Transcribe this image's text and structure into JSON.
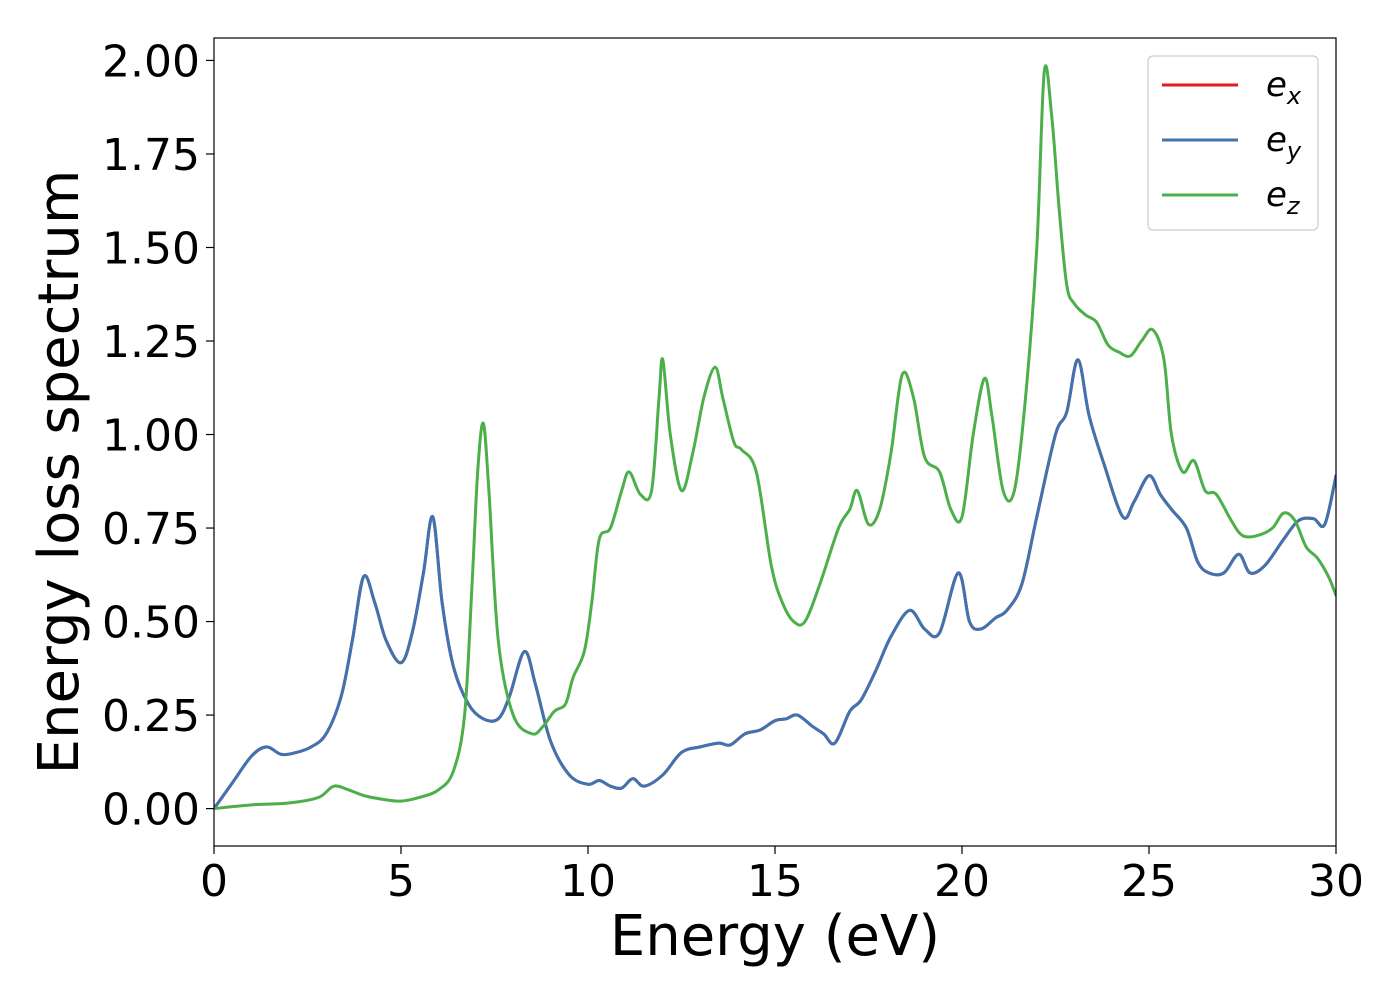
{
  "chart_data": {
    "type": "line",
    "title": "",
    "xlabel": "Energy (eV)",
    "ylabel": "Energy loss spectrum",
    "xlim": [
      0,
      30
    ],
    "ylim": [
      -0.1,
      2.06
    ],
    "xticks": [
      0,
      5,
      10,
      15,
      20,
      25,
      30
    ],
    "yticks": [
      0.0,
      0.25,
      0.5,
      0.75,
      1.0,
      1.25,
      1.5,
      1.75,
      2.0
    ],
    "xtick_labels": [
      "0",
      "5",
      "10",
      "15",
      "20",
      "25",
      "30"
    ],
    "ytick_labels": [
      "0.00",
      "0.25",
      "0.50",
      "0.75",
      "1.00",
      "1.25",
      "1.50",
      "1.75",
      "2.00"
    ],
    "grid": false,
    "legend_position": "top-right",
    "series": [
      {
        "name": "e_x",
        "label_base": "e",
        "label_sub": "x",
        "color": "#e41a1c",
        "x": [
          0,
          0.5,
          1.0,
          1.4,
          1.8,
          2.2,
          2.6,
          3.0,
          3.4,
          3.7,
          4.0,
          4.3,
          4.6,
          5.0,
          5.3,
          5.6,
          5.85,
          6.1,
          6.4,
          6.8,
          7.2,
          7.6,
          7.9,
          8.3,
          8.6,
          9.0,
          9.5,
          10.0,
          10.3,
          10.6,
          10.9,
          11.2,
          11.5,
          12.0,
          12.5,
          13.0,
          13.5,
          13.8,
          14.2,
          14.6,
          15.0,
          15.3,
          15.6,
          16.0,
          16.3,
          16.6,
          17.0,
          17.3,
          17.7,
          18.1,
          18.6,
          19.0,
          19.4,
          19.9,
          20.2,
          20.5,
          20.9,
          21.2,
          21.6,
          22.0,
          22.5,
          22.8,
          23.1,
          23.4,
          23.8,
          24.3,
          24.6,
          25.0,
          25.3,
          25.6,
          26.0,
          26.3,
          26.6,
          27.0,
          27.4,
          27.7,
          28.1,
          28.6,
          29.0,
          29.4,
          29.7,
          30.0
        ],
        "y": [
          0,
          0.07,
          0.14,
          0.165,
          0.145,
          0.15,
          0.165,
          0.2,
          0.3,
          0.45,
          0.62,
          0.55,
          0.45,
          0.39,
          0.47,
          0.63,
          0.78,
          0.55,
          0.38,
          0.28,
          0.24,
          0.24,
          0.3,
          0.42,
          0.33,
          0.18,
          0.09,
          0.065,
          0.075,
          0.06,
          0.055,
          0.08,
          0.06,
          0.09,
          0.15,
          0.165,
          0.175,
          0.17,
          0.2,
          0.21,
          0.235,
          0.24,
          0.25,
          0.22,
          0.2,
          0.175,
          0.26,
          0.29,
          0.37,
          0.46,
          0.53,
          0.48,
          0.47,
          0.63,
          0.5,
          0.48,
          0.51,
          0.53,
          0.6,
          0.78,
          1.0,
          1.06,
          1.2,
          1.05,
          0.92,
          0.78,
          0.82,
          0.89,
          0.84,
          0.8,
          0.75,
          0.66,
          0.63,
          0.63,
          0.68,
          0.63,
          0.65,
          0.72,
          0.77,
          0.775,
          0.76,
          0.89
        ]
      },
      {
        "name": "e_y",
        "label_base": "e",
        "label_sub": "y",
        "color": "#3d74b1",
        "x": [
          0,
          0.5,
          1.0,
          1.4,
          1.8,
          2.2,
          2.6,
          3.0,
          3.4,
          3.7,
          4.0,
          4.3,
          4.6,
          5.0,
          5.3,
          5.6,
          5.85,
          6.1,
          6.4,
          6.8,
          7.2,
          7.6,
          7.9,
          8.3,
          8.6,
          9.0,
          9.5,
          10.0,
          10.3,
          10.6,
          10.9,
          11.2,
          11.5,
          12.0,
          12.5,
          13.0,
          13.5,
          13.8,
          14.2,
          14.6,
          15.0,
          15.3,
          15.6,
          16.0,
          16.3,
          16.6,
          17.0,
          17.3,
          17.7,
          18.1,
          18.6,
          19.0,
          19.4,
          19.9,
          20.2,
          20.5,
          20.9,
          21.2,
          21.6,
          22.0,
          22.5,
          22.8,
          23.1,
          23.4,
          23.8,
          24.3,
          24.6,
          25.0,
          25.3,
          25.6,
          26.0,
          26.3,
          26.6,
          27.0,
          27.4,
          27.7,
          28.1,
          28.6,
          29.0,
          29.4,
          29.7,
          30.0
        ],
        "y": [
          0,
          0.07,
          0.14,
          0.165,
          0.145,
          0.15,
          0.165,
          0.2,
          0.3,
          0.45,
          0.62,
          0.55,
          0.45,
          0.39,
          0.47,
          0.63,
          0.78,
          0.55,
          0.38,
          0.28,
          0.24,
          0.24,
          0.3,
          0.42,
          0.33,
          0.18,
          0.09,
          0.065,
          0.075,
          0.06,
          0.055,
          0.08,
          0.06,
          0.09,
          0.15,
          0.165,
          0.175,
          0.17,
          0.2,
          0.21,
          0.235,
          0.24,
          0.25,
          0.22,
          0.2,
          0.175,
          0.26,
          0.29,
          0.37,
          0.46,
          0.53,
          0.48,
          0.47,
          0.63,
          0.5,
          0.48,
          0.51,
          0.53,
          0.6,
          0.78,
          1.0,
          1.06,
          1.2,
          1.05,
          0.92,
          0.78,
          0.82,
          0.89,
          0.84,
          0.8,
          0.75,
          0.66,
          0.63,
          0.63,
          0.68,
          0.63,
          0.65,
          0.72,
          0.77,
          0.775,
          0.76,
          0.89
        ]
      },
      {
        "name": "e_z",
        "label_base": "e",
        "label_sub": "z",
        "color": "#4daf4a",
        "x": [
          0,
          1.0,
          2.0,
          2.8,
          3.2,
          3.6,
          4.0,
          4.5,
          5.0,
          5.5,
          6.0,
          6.4,
          6.7,
          6.9,
          7.05,
          7.2,
          7.35,
          7.6,
          8.0,
          8.5,
          8.8,
          9.1,
          9.4,
          9.6,
          9.9,
          10.1,
          10.3,
          10.6,
          10.9,
          11.1,
          11.4,
          11.7,
          11.9,
          12.0,
          12.2,
          12.5,
          12.8,
          13.1,
          13.4,
          13.6,
          13.9,
          14.1,
          14.5,
          14.9,
          15.2,
          15.5,
          15.8,
          16.2,
          16.7,
          17.0,
          17.2,
          17.5,
          17.8,
          18.1,
          18.4,
          18.7,
          19.0,
          19.4,
          19.7,
          20.0,
          20.3,
          20.6,
          20.8,
          21.1,
          21.4,
          21.7,
          22.0,
          22.2,
          22.4,
          22.6,
          22.8,
          23.0,
          23.3,
          23.6,
          23.9,
          24.2,
          24.5,
          24.8,
          25.1,
          25.4,
          25.6,
          25.9,
          26.2,
          26.5,
          26.8,
          27.2,
          27.5,
          27.9,
          28.3,
          28.6,
          28.9,
          29.2,
          29.5,
          29.8,
          30.0
        ],
        "y": [
          0,
          0.01,
          0.015,
          0.03,
          0.06,
          0.05,
          0.035,
          0.025,
          0.02,
          0.03,
          0.05,
          0.1,
          0.25,
          0.6,
          0.9,
          1.03,
          0.85,
          0.45,
          0.25,
          0.2,
          0.22,
          0.26,
          0.28,
          0.35,
          0.42,
          0.55,
          0.72,
          0.75,
          0.85,
          0.9,
          0.84,
          0.85,
          1.1,
          1.2,
          1.0,
          0.85,
          0.95,
          1.1,
          1.18,
          1.1,
          0.98,
          0.96,
          0.9,
          0.65,
          0.55,
          0.5,
          0.5,
          0.6,
          0.75,
          0.8,
          0.85,
          0.76,
          0.8,
          0.95,
          1.16,
          1.1,
          0.94,
          0.9,
          0.8,
          0.78,
          1.0,
          1.15,
          1.05,
          0.85,
          0.85,
          1.1,
          1.5,
          1.97,
          1.85,
          1.6,
          1.4,
          1.35,
          1.32,
          1.3,
          1.24,
          1.22,
          1.21,
          1.25,
          1.28,
          1.2,
          1.0,
          0.9,
          0.93,
          0.85,
          0.84,
          0.77,
          0.73,
          0.73,
          0.75,
          0.79,
          0.77,
          0.7,
          0.67,
          0.62,
          0.57
        ]
      }
    ]
  }
}
